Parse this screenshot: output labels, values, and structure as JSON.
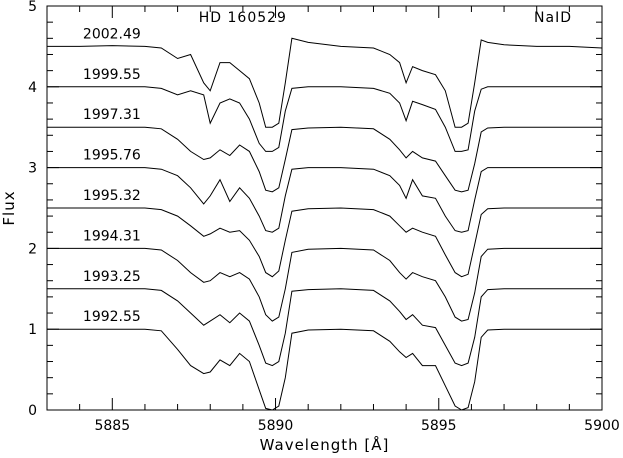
{
  "chart_data": {
    "type": "line",
    "title": "",
    "xlabel": "Wavelength [Å]",
    "ylabel": "Flux",
    "xlim": [
      5883,
      5900
    ],
    "ylim": [
      0,
      5
    ],
    "x_ticks": [
      5885,
      5890,
      5895,
      5900
    ],
    "y_ticks": [
      0,
      1,
      2,
      3,
      4,
      5
    ],
    "grid": false,
    "legend": "none",
    "annotations": [
      {
        "text": "HD  160529",
        "x": 5889.0,
        "y": 4.8
      },
      {
        "text": "NaID",
        "x": 5898.5,
        "y": 4.8
      }
    ],
    "line_x": [
      5883,
      5884,
      5885,
      5886,
      5886.5,
      5887,
      5887.4,
      5887.8,
      5888.0,
      5888.3,
      5888.6,
      5888.9,
      5889.2,
      5889.5,
      5889.7,
      5889.9,
      5890.1,
      5890.3,
      5890.5,
      5891,
      5892,
      5893,
      5893.5,
      5893.8,
      5894.0,
      5894.2,
      5894.5,
      5894.9,
      5895.2,
      5895.5,
      5895.7,
      5895.9,
      5896.1,
      5896.3,
      5896.5,
      5897,
      5898,
      5899,
      5900
    ],
    "series": [
      {
        "name": "1992.55",
        "values": [
          1.0,
          1.0,
          1.0,
          1.0,
          0.98,
          0.75,
          0.55,
          0.45,
          0.47,
          0.62,
          0.55,
          0.7,
          0.6,
          0.25,
          0.02,
          0.0,
          0.05,
          0.4,
          0.95,
          0.99,
          1.0,
          0.98,
          0.85,
          0.72,
          0.65,
          0.7,
          0.55,
          0.55,
          0.3,
          0.05,
          0.0,
          0.03,
          0.35,
          0.9,
          0.99,
          1.0,
          1.0,
          1.0,
          1.0
        ]
      },
      {
        "name": "1993.25",
        "values": [
          1.5,
          1.5,
          1.5,
          1.5,
          1.48,
          1.35,
          1.2,
          1.05,
          1.1,
          1.18,
          1.08,
          1.2,
          1.1,
          0.8,
          0.58,
          0.55,
          0.6,
          0.95,
          1.47,
          1.49,
          1.5,
          1.48,
          1.35,
          1.22,
          1.12,
          1.18,
          1.05,
          1.02,
          0.8,
          0.58,
          0.55,
          0.58,
          0.9,
          1.4,
          1.49,
          1.5,
          1.5,
          1.5,
          1.5
        ]
      },
      {
        "name": "1994.31",
        "values": [
          2.0,
          2.0,
          2.0,
          2.0,
          1.98,
          1.85,
          1.7,
          1.58,
          1.6,
          1.7,
          1.65,
          1.7,
          1.62,
          1.4,
          1.18,
          1.1,
          1.15,
          1.5,
          1.95,
          1.99,
          2.0,
          1.98,
          1.85,
          1.7,
          1.62,
          1.7,
          1.65,
          1.6,
          1.4,
          1.15,
          1.1,
          1.12,
          1.45,
          1.9,
          1.99,
          2.0,
          2.0,
          2.0,
          2.0
        ]
      },
      {
        "name": "1995.32",
        "values": [
          2.5,
          2.5,
          2.5,
          2.5,
          2.48,
          2.4,
          2.28,
          2.15,
          2.18,
          2.25,
          2.2,
          2.22,
          2.1,
          1.9,
          1.7,
          1.65,
          1.72,
          2.1,
          2.46,
          2.49,
          2.5,
          2.48,
          2.4,
          2.28,
          2.2,
          2.25,
          2.2,
          2.15,
          1.92,
          1.7,
          1.65,
          1.68,
          2.05,
          2.42,
          2.49,
          2.5,
          2.5,
          2.5,
          2.5
        ]
      },
      {
        "name": "1995.76",
        "values": [
          3.0,
          3.0,
          3.0,
          3.0,
          2.98,
          2.9,
          2.75,
          2.55,
          2.65,
          2.85,
          2.58,
          2.75,
          2.62,
          2.4,
          2.22,
          2.2,
          2.25,
          2.65,
          2.98,
          3.0,
          3.0,
          2.98,
          2.9,
          2.78,
          2.62,
          2.85,
          2.65,
          2.62,
          2.4,
          2.22,
          2.2,
          2.22,
          2.6,
          2.95,
          3.0,
          3.0,
          3.0,
          3.0,
          3.0
        ]
      },
      {
        "name": "1997.31",
        "values": [
          3.5,
          3.5,
          3.5,
          3.5,
          3.48,
          3.35,
          3.2,
          3.1,
          3.12,
          3.22,
          3.15,
          3.28,
          3.2,
          2.95,
          2.72,
          2.7,
          2.75,
          3.1,
          3.47,
          3.49,
          3.5,
          3.48,
          3.35,
          3.22,
          3.12,
          3.2,
          3.12,
          3.08,
          2.9,
          2.72,
          2.7,
          2.72,
          3.05,
          3.44,
          3.49,
          3.5,
          3.5,
          3.5,
          3.5
        ]
      },
      {
        "name": "1999.55",
        "values": [
          4.0,
          4.0,
          4.0,
          4.0,
          3.98,
          3.9,
          3.95,
          3.9,
          3.55,
          3.8,
          3.85,
          3.8,
          3.6,
          3.3,
          3.2,
          3.2,
          3.25,
          3.7,
          3.98,
          4.0,
          4.0,
          3.98,
          3.92,
          3.8,
          3.58,
          3.82,
          3.78,
          3.72,
          3.5,
          3.2,
          3.2,
          3.22,
          3.7,
          3.97,
          4.0,
          4.0,
          4.0,
          4.0,
          4.0
        ]
      },
      {
        "name": "2002.49",
        "values": [
          4.5,
          4.5,
          4.51,
          4.5,
          4.48,
          4.35,
          4.4,
          4.05,
          3.95,
          4.3,
          4.3,
          4.2,
          4.1,
          3.8,
          3.5,
          3.5,
          3.55,
          4.05,
          4.6,
          4.55,
          4.5,
          4.48,
          4.4,
          4.3,
          4.05,
          4.25,
          4.2,
          4.15,
          3.95,
          3.5,
          3.5,
          3.55,
          4.05,
          4.58,
          4.55,
          4.52,
          4.5,
          4.5,
          4.48
        ]
      }
    ]
  }
}
